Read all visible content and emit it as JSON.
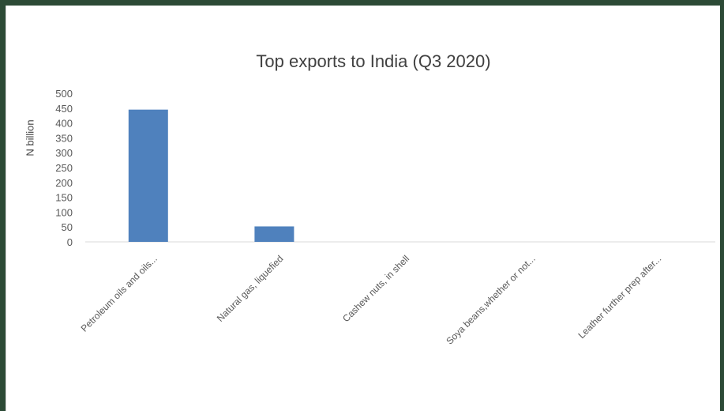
{
  "chart_data": {
    "type": "bar",
    "title": "Top exports to India (Q3 2020)",
    "xlabel": "",
    "ylabel": "N billion",
    "categories": [
      "Petroleum oils and oils...",
      "Natural gas, liquefied",
      "Cashew nuts, in shell",
      "Soya beans,whether or not...",
      "Leather further prep after..."
    ],
    "values": [
      445,
      52,
      0,
      0,
      0
    ],
    "ylim": [
      0,
      500
    ],
    "yticks": [
      "0",
      "50",
      "100",
      "150",
      "200",
      "250",
      "300",
      "350",
      "400",
      "450",
      "500"
    ],
    "bar_color": "#4f81bd",
    "grid": false
  }
}
